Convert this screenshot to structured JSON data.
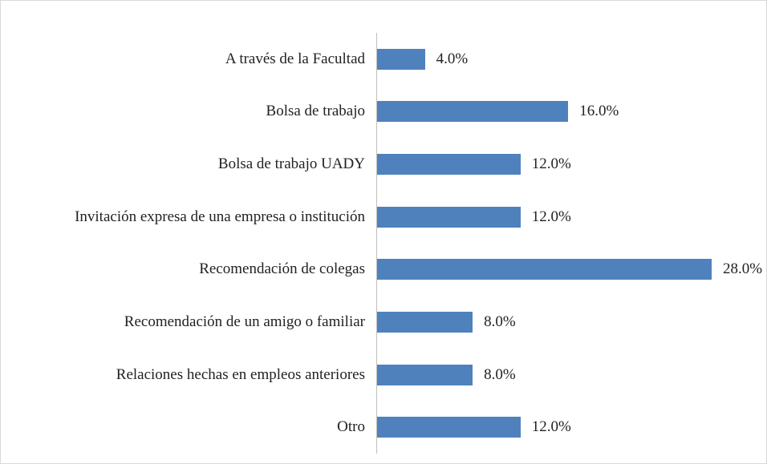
{
  "chart_data": {
    "type": "bar",
    "orientation": "horizontal",
    "categories": [
      "A través de la Facultad",
      "Bolsa de trabajo",
      "Bolsa de trabajo UADY",
      "Invitación expresa de una empresa o institución",
      "Recomendación de colegas",
      "Recomendación de un amigo o familiar",
      "Relaciones hechas en empleos anteriores",
      "Otro"
    ],
    "values": [
      4,
      16,
      12,
      12,
      28,
      8,
      8,
      12
    ],
    "value_labels": [
      "4.0%",
      "16.0%",
      "12.0%",
      "12.0%",
      "28.0%",
      "8.0%",
      "8.0%",
      "12.0%"
    ],
    "color": "#4f81bd"
  }
}
